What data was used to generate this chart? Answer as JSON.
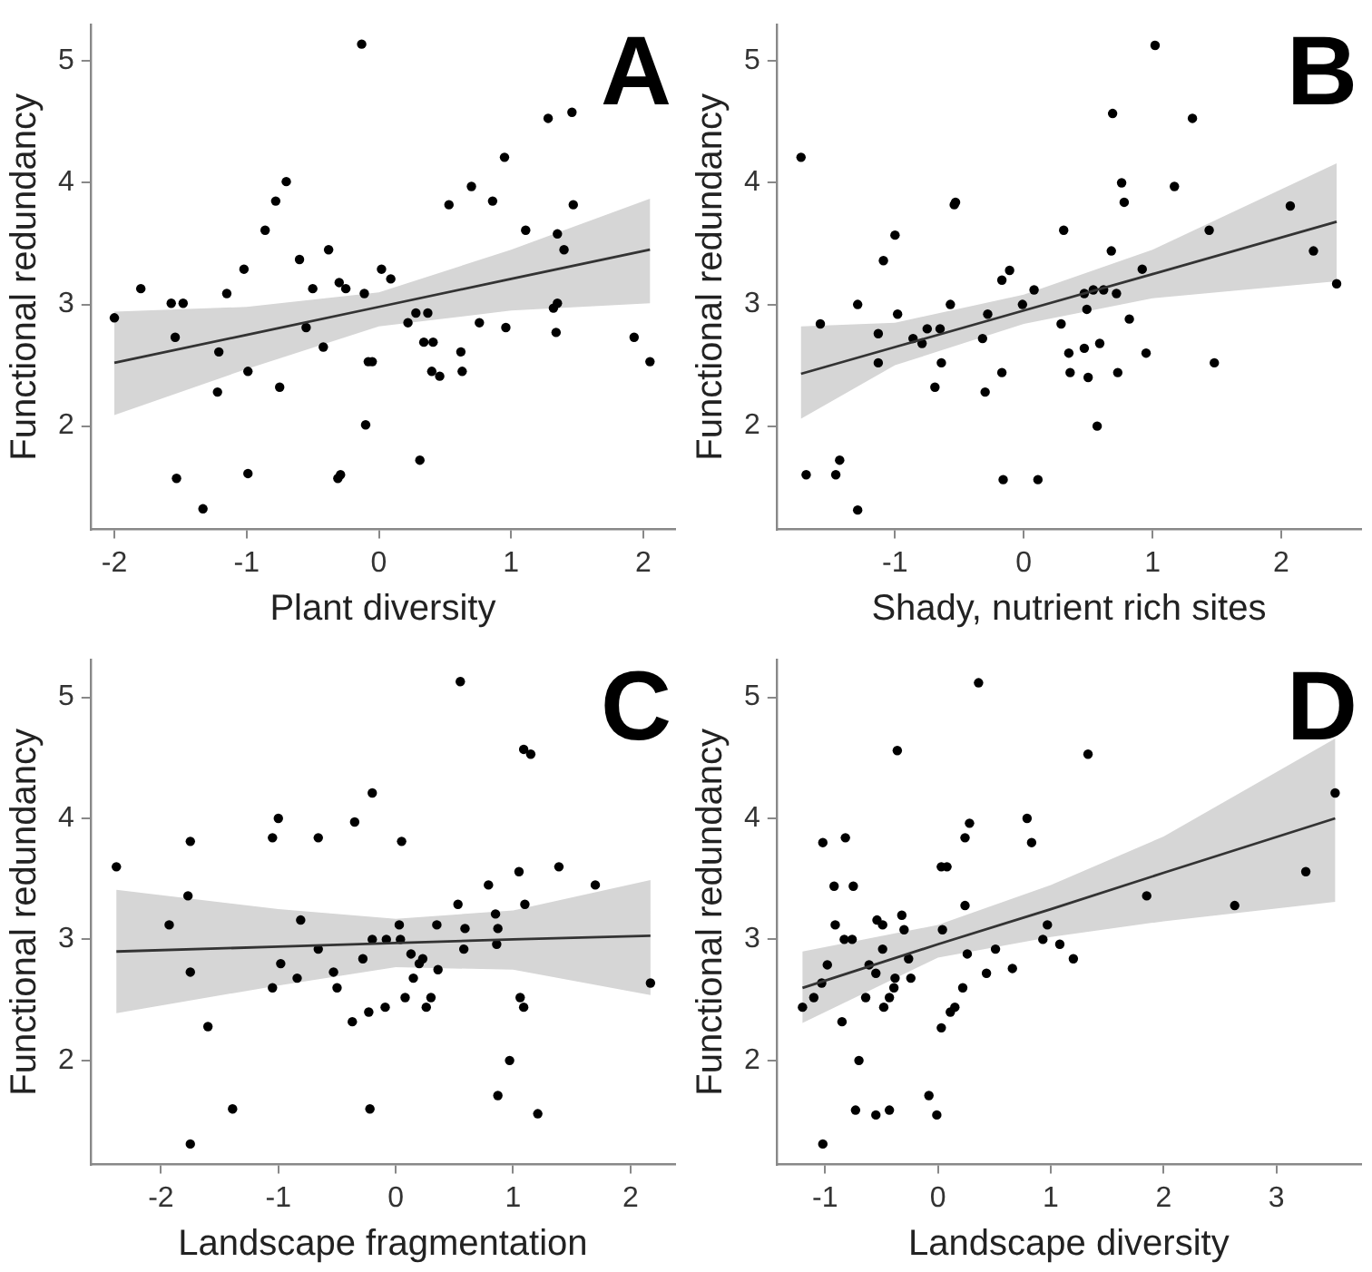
{
  "chart_data": [
    {
      "type": "scatter",
      "title": "A",
      "xlabel": "Plant diversity",
      "ylabel": "Functional redundancy",
      "xlim": [
        -2.18,
        2.24
      ],
      "xticks": [
        -2,
        -1,
        0,
        1,
        2
      ],
      "ylim": [
        1.15,
        5.3
      ],
      "yticks": [
        2,
        3,
        4,
        5
      ],
      "grid": false,
      "legend": false,
      "series": [
        {
          "marker": "circle",
          "color": "#000000",
          "x": [
            -2.0,
            -1.8,
            -1.57,
            -1.48,
            -1.54,
            -1.53,
            -1.33,
            -1.21,
            -1.22,
            -1.15,
            -0.99,
            -0.99,
            -1.02,
            -0.86,
            -0.78,
            -0.75,
            -0.7,
            -0.6,
            -0.55,
            -0.5,
            -0.42,
            -0.38,
            -0.31,
            -0.29,
            -0.3,
            -0.25,
            -0.13,
            -0.11,
            -0.1,
            -0.08,
            -0.05,
            0.02,
            0.09,
            0.22,
            0.28,
            0.31,
            0.34,
            0.37,
            0.4,
            0.41,
            0.46,
            0.53,
            0.62,
            0.63,
            0.7,
            0.76,
            0.86,
            0.95,
            0.96,
            1.11,
            1.28,
            1.35,
            1.32,
            1.35,
            1.34,
            1.4,
            1.46,
            1.47,
            1.93,
            2.05
          ],
          "values": [
            2.89,
            3.13,
            3.01,
            3.01,
            2.73,
            1.57,
            1.32,
            2.61,
            2.28,
            3.09,
            2.45,
            1.61,
            3.29,
            3.61,
            3.85,
            2.32,
            4.01,
            3.37,
            2.81,
            3.13,
            2.65,
            3.45,
            1.57,
            1.6,
            3.18,
            3.13,
            5.14,
            3.09,
            2.01,
            2.53,
            2.53,
            3.29,
            3.21,
            2.85,
            2.93,
            1.72,
            2.69,
            2.93,
            2.45,
            2.69,
            2.41,
            3.82,
            2.61,
            2.45,
            3.97,
            2.85,
            3.85,
            4.21,
            2.81,
            3.61,
            4.53,
            3.58,
            2.97,
            3.01,
            2.77,
            3.45,
            4.58,
            3.82,
            2.73,
            2.53
          ]
        },
        {
          "type": "line",
          "color": "#333333",
          "x": [
            -2,
            -1,
            0,
            1,
            2.05
          ],
          "values": [
            2.52,
            2.75,
            2.98,
            3.21,
            3.45
          ],
          "lower": [
            2.09,
            2.47,
            2.82,
            2.95,
            3.01
          ],
          "upper": [
            2.94,
            2.98,
            3.1,
            3.45,
            3.87
          ]
        }
      ]
    },
    {
      "type": "scatter",
      "title": "B",
      "xlabel": "Shady, nutrient rich sites",
      "ylabel": "Functional redundancy",
      "xlim": [
        -1.92,
        2.62
      ],
      "xticks": [
        -1,
        0,
        1,
        2
      ],
      "ylim": [
        1.15,
        5.3
      ],
      "yticks": [
        2,
        3,
        4,
        5
      ],
      "grid": false,
      "legend": false,
      "series": [
        {
          "marker": "circle",
          "color": "#000000",
          "x": [
            -1.73,
            -1.69,
            -1.58,
            -1.46,
            -1.43,
            -1.29,
            -1.29,
            -1.13,
            -1.13,
            -1.09,
            -1.0,
            -0.98,
            -0.86,
            -0.79,
            -0.75,
            -0.65,
            -0.69,
            -0.64,
            -0.57,
            -0.54,
            -0.53,
            -0.32,
            -0.3,
            -0.28,
            -0.17,
            -0.16,
            -0.17,
            -0.11,
            -0.01,
            0.08,
            0.11,
            0.29,
            0.31,
            0.35,
            0.36,
            0.47,
            0.47,
            0.49,
            0.5,
            0.54,
            0.57,
            0.59,
            0.62,
            0.68,
            0.69,
            0.72,
            0.73,
            0.76,
            0.78,
            0.82,
            0.92,
            0.95,
            1.02,
            1.17,
            1.31,
            1.44,
            1.48,
            2.07,
            2.25,
            2.43
          ],
          "values": [
            4.21,
            1.6,
            2.84,
            1.6,
            1.72,
            3.0,
            1.31,
            2.76,
            2.52,
            3.36,
            3.57,
            2.92,
            2.72,
            2.68,
            2.8,
            2.8,
            2.32,
            2.52,
            3.0,
            3.82,
            3.84,
            2.72,
            2.28,
            2.92,
            2.44,
            1.56,
            3.2,
            3.28,
            3.0,
            3.12,
            1.56,
            2.84,
            3.61,
            2.6,
            2.44,
            2.64,
            3.09,
            2.96,
            2.4,
            3.12,
            2.0,
            2.68,
            3.12,
            3.44,
            4.57,
            3.09,
            2.44,
            4.0,
            3.84,
            2.88,
            3.29,
            2.6,
            5.13,
            3.97,
            4.53,
            3.61,
            2.52,
            3.81,
            3.44,
            3.17
          ]
        },
        {
          "type": "line",
          "color": "#333333",
          "x": [
            -1.73,
            -1,
            0,
            1,
            2.43
          ],
          "values": [
            2.43,
            2.65,
            2.95,
            3.25,
            3.68
          ],
          "lower": [
            2.06,
            2.5,
            2.84,
            3.05,
            3.19
          ],
          "upper": [
            2.82,
            2.85,
            3.08,
            3.45,
            4.16
          ]
        }
      ]
    },
    {
      "type": "scatter",
      "title": "C",
      "xlabel": "Landscape fragmentation",
      "ylabel": "Functional redundancy",
      "xlim": [
        -2.6,
        2.38
      ],
      "xticks": [
        -2,
        -1,
        0,
        1,
        2
      ],
      "ylim": [
        1.14,
        5.31
      ],
      "yticks": [
        2,
        3,
        4,
        5
      ],
      "grid": false,
      "legend": false,
      "series": [
        {
          "marker": "circle",
          "color": "#000000",
          "x": [
            -2.38,
            -1.93,
            -1.75,
            -1.77,
            -1.75,
            -1.75,
            -1.6,
            -1.39,
            -1.05,
            -1.05,
            -1.0,
            -0.98,
            -0.84,
            -0.81,
            -0.66,
            -0.66,
            -0.53,
            -0.5,
            -0.37,
            -0.35,
            -0.28,
            -0.23,
            -0.2,
            -0.2,
            -0.22,
            -0.09,
            -0.08,
            0.03,
            0.04,
            0.05,
            0.08,
            0.13,
            0.15,
            0.2,
            0.23,
            0.26,
            0.3,
            0.35,
            0.36,
            0.53,
            0.55,
            0.58,
            0.59,
            0.79,
            0.85,
            0.86,
            0.87,
            0.87,
            0.97,
            1.05,
            1.06,
            1.09,
            1.1,
            1.09,
            1.15,
            1.21,
            1.39,
            1.7,
            2.17
          ],
          "values": [
            3.6,
            3.12,
            3.81,
            3.36,
            2.73,
            1.31,
            2.28,
            1.6,
            2.6,
            3.84,
            4.0,
            2.8,
            2.68,
            3.16,
            3.84,
            2.92,
            2.73,
            2.6,
            2.32,
            3.97,
            2.84,
            2.4,
            4.21,
            3.0,
            1.6,
            2.44,
            3.0,
            3.12,
            3.0,
            3.81,
            2.52,
            2.88,
            2.68,
            2.8,
            2.84,
            2.44,
            2.52,
            3.12,
            2.75,
            3.29,
            5.13,
            2.92,
            3.09,
            3.45,
            3.21,
            2.96,
            3.09,
            1.71,
            2.0,
            3.56,
            2.52,
            4.57,
            3.29,
            2.44,
            4.53,
            1.56,
            3.6,
            3.45,
            2.64
          ]
        },
        {
          "type": "line",
          "color": "#333333",
          "x": [
            -2.38,
            -1,
            0,
            1,
            2.17
          ],
          "values": [
            2.9,
            2.94,
            2.97,
            3.0,
            3.03
          ],
          "lower": [
            2.39,
            2.62,
            2.77,
            2.75,
            2.54
          ],
          "upper": [
            3.41,
            3.25,
            3.17,
            3.24,
            3.49
          ]
        }
      ]
    },
    {
      "type": "scatter",
      "title": "D",
      "xlabel": "Landscape diversity",
      "ylabel": "Functional redundancy",
      "xlim": [
        -1.43,
        3.75
      ],
      "xticks": [
        -1,
        0,
        1,
        2,
        3
      ],
      "ylim": [
        1.14,
        5.31
      ],
      "yticks": [
        2,
        3,
        4,
        5
      ],
      "grid": false,
      "legend": false,
      "series": [
        {
          "marker": "circle",
          "color": "#000000",
          "x": [
            -1.2,
            -1.1,
            -1.03,
            -1.02,
            -1.02,
            -0.98,
            -0.92,
            -0.91,
            -0.85,
            -0.83,
            -0.82,
            -0.76,
            -0.75,
            -0.73,
            -0.7,
            -0.64,
            -0.61,
            -0.55,
            -0.55,
            -0.54,
            -0.49,
            -0.48,
            -0.49,
            -0.43,
            -0.43,
            -0.39,
            -0.38,
            -0.36,
            -0.32,
            -0.3,
            -0.26,
            -0.24,
            -0.08,
            -0.01,
            0.03,
            0.03,
            0.08,
            0.04,
            0.11,
            0.15,
            0.22,
            0.24,
            0.24,
            0.26,
            0.28,
            0.36,
            0.43,
            0.51,
            0.66,
            0.79,
            0.83,
            0.93,
            0.97,
            1.08,
            1.2,
            1.33,
            1.85,
            2.63,
            3.26,
            3.52
          ],
          "values": [
            2.44,
            2.52,
            2.64,
            3.8,
            1.31,
            2.79,
            3.44,
            3.12,
            2.32,
            3.0,
            3.84,
            3.0,
            3.44,
            1.59,
            2.0,
            2.52,
            2.79,
            1.55,
            2.72,
            3.16,
            3.12,
            2.44,
            2.92,
            1.59,
            2.52,
            2.6,
            2.68,
            4.56,
            3.2,
            3.08,
            2.84,
            2.68,
            1.71,
            1.55,
            2.27,
            3.6,
            3.6,
            3.08,
            2.4,
            2.44,
            2.6,
            3.28,
            3.84,
            2.88,
            3.96,
            5.12,
            2.72,
            2.92,
            2.76,
            4.0,
            3.8,
            3.0,
            3.12,
            2.96,
            2.84,
            4.53,
            3.36,
            3.28,
            3.56,
            4.21
          ]
        },
        {
          "type": "line",
          "color": "#333333",
          "x": [
            -1.2,
            0,
            1,
            2,
            3.52
          ],
          "values": [
            2.6,
            2.96,
            3.25,
            3.55,
            4.0
          ],
          "lower": [
            2.31,
            2.85,
            3.02,
            3.15,
            3.31
          ],
          "upper": [
            2.9,
            3.12,
            3.45,
            3.85,
            4.66
          ]
        }
      ]
    }
  ]
}
